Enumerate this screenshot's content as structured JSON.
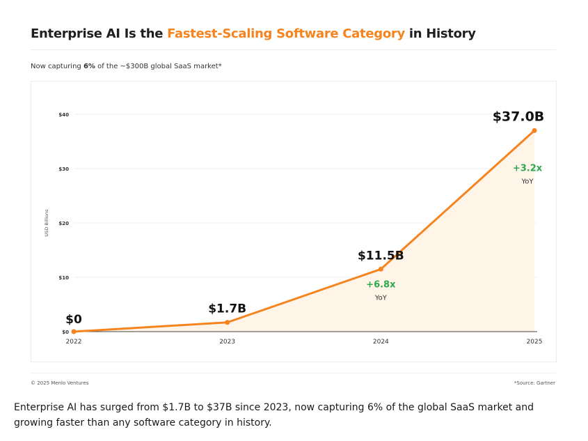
{
  "header": {
    "title_pre": "Enterprise AI Is the ",
    "title_accent": "Fastest-Scaling Software Category",
    "title_post": " in History",
    "subtitle_pre": "Now capturing ",
    "subtitle_bold": "6%",
    "subtitle_post": " of the ~$300B global SaaS market*"
  },
  "colors": {
    "accent": "#f5841f",
    "growth": "#2fa84f",
    "area_fill": "#fef4e8",
    "grid": "#efefef"
  },
  "chart_data": {
    "type": "area",
    "title": "",
    "xlabel": "",
    "ylabel": "USD Billions",
    "x": [
      "2022",
      "2023",
      "2024",
      "2025"
    ],
    "values": [
      0,
      1.7,
      11.5,
      37.0
    ],
    "value_labels": [
      "$0",
      "$1.7B",
      "$11.5B",
      "$37.0B"
    ],
    "growth_labels": [
      null,
      null,
      {
        "value": "+6.8x",
        "sub": "YoY"
      },
      {
        "value": "+3.2x",
        "sub": "YoY"
      }
    ],
    "ylim": [
      0,
      40
    ],
    "yticks": [
      0,
      10,
      20,
      30,
      40
    ],
    "ytick_labels": [
      "$0",
      "$10",
      "$20",
      "$30",
      "$40"
    ],
    "grid": true
  },
  "footer": {
    "left": "© 2025 Menlo Ventures",
    "right": "*Source: Gartner"
  },
  "caption": "Enterprise AI has surged from $1.7B to $37B since 2023, now capturing 6% of the global SaaS market and growing faster than any software category in history."
}
